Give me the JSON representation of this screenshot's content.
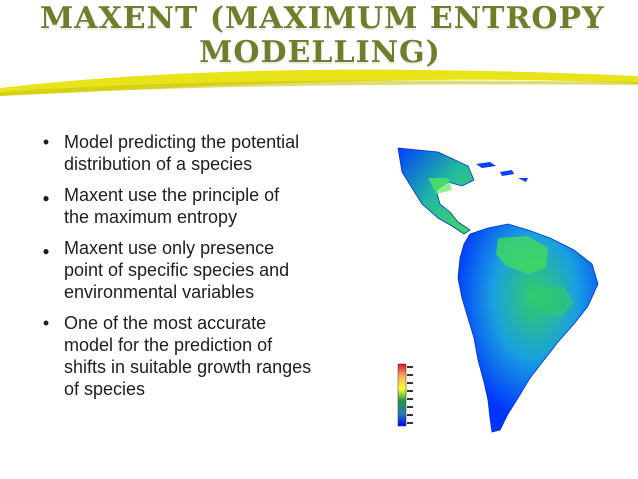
{
  "slide": {
    "title_line1": "MAXENT   (MAXIMUM ENTROPY",
    "title_line2": "MODELLING)",
    "title_color": "#6d7f2a",
    "accent_color": "#e9e31a",
    "bullets": [
      {
        "marker": "•",
        "text": "Model predicting the potential\ndistribution of a species"
      },
      {
        "marker": "●",
        "text": "Maxent use the principle of\nthe maximum entropy"
      },
      {
        "marker": "●",
        "text": "Maxent use only presence\npoint of specific species and\nenvironmental variables"
      },
      {
        "marker": "•",
        "text": "One of the most accurate\nmodel for the prediction of\nshifts in suitable growth ranges\nof species"
      }
    ]
  },
  "map": {
    "description": "maxent-suitability-map",
    "legend_colors": [
      "#d7191c",
      "#fdae61",
      "#ffff33",
      "#1a9641",
      "#2c7bb6",
      "#0000ff"
    ],
    "ocean_color": "#ffffff",
    "land_low_color": "#0033ff",
    "land_high_color": "#33cc66"
  }
}
